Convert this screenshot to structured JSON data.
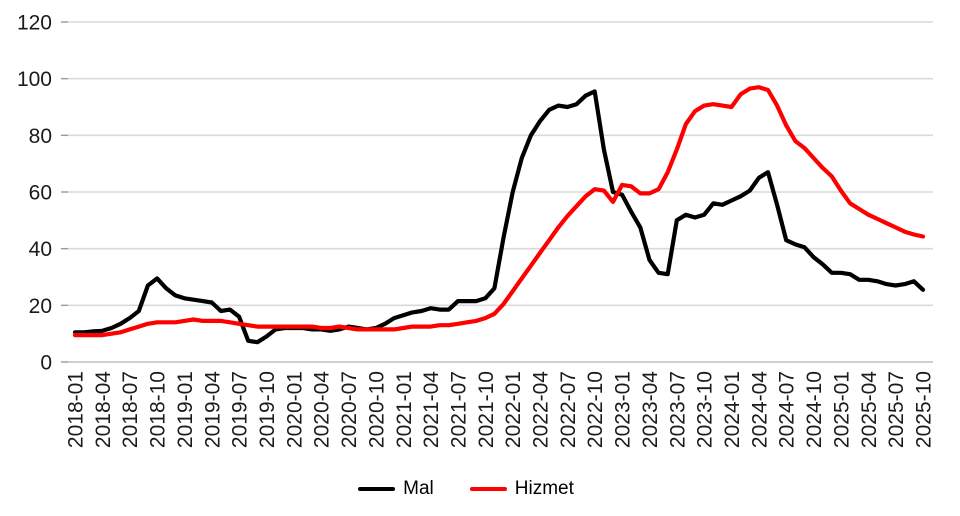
{
  "chart_data": {
    "type": "line",
    "title": "",
    "xlabel": "",
    "ylabel": "",
    "ylim": [
      0,
      120
    ],
    "yticks": [
      0,
      20,
      40,
      60,
      80,
      100,
      120
    ],
    "x_tick_every": 3,
    "grid": "horizontal-only",
    "legend_position": "bottom-center",
    "gridline_color": "#d9d9d9",
    "baseline_color": "#bfbfbf",
    "x": [
      "2018-01",
      "2018-02",
      "2018-03",
      "2018-04",
      "2018-05",
      "2018-06",
      "2018-07",
      "2018-08",
      "2018-09",
      "2018-10",
      "2018-11",
      "2018-12",
      "2019-01",
      "2019-02",
      "2019-03",
      "2019-04",
      "2019-05",
      "2019-06",
      "2019-07",
      "2019-08",
      "2019-09",
      "2019-10",
      "2019-11",
      "2019-12",
      "2020-01",
      "2020-02",
      "2020-03",
      "2020-04",
      "2020-05",
      "2020-06",
      "2020-07",
      "2020-08",
      "2020-09",
      "2020-10",
      "2020-11",
      "2020-12",
      "2021-01",
      "2021-02",
      "2021-03",
      "2021-04",
      "2021-05",
      "2021-06",
      "2021-07",
      "2021-08",
      "2021-09",
      "2021-10",
      "2021-11",
      "2021-12",
      "2022-01",
      "2022-02",
      "2022-03",
      "2022-04",
      "2022-05",
      "2022-06",
      "2022-07",
      "2022-08",
      "2022-09",
      "2022-10",
      "2022-11",
      "2022-12",
      "2023-01",
      "2023-02",
      "2023-03",
      "2023-04",
      "2023-05",
      "2023-06",
      "2023-07",
      "2023-08",
      "2023-09",
      "2023-10",
      "2023-11",
      "2023-12",
      "2024-01",
      "2024-02",
      "2024-03",
      "2024-04",
      "2024-05",
      "2024-06",
      "2024-07",
      "2024-08",
      "2024-09",
      "2024-10",
      "2024-11",
      "2024-12",
      "2025-01",
      "2025-02",
      "2025-03",
      "2025-04",
      "2025-05",
      "2025-06",
      "2025-07",
      "2025-08",
      "2025-09",
      "2025-10"
    ],
    "series": [
      {
        "name": "Mal",
        "color": "#000000",
        "values": [
          10.5,
          10.5,
          10.8,
          11,
          12,
          13.5,
          15.5,
          18,
          27,
          29.5,
          26,
          23.5,
          22.5,
          22,
          21.5,
          21,
          18,
          18.5,
          16,
          7.5,
          7,
          9,
          11.5,
          12,
          12,
          12,
          11.5,
          11.5,
          11,
          11.5,
          12.5,
          12,
          11.5,
          12,
          13.5,
          15.5,
          16.5,
          17.5,
          18,
          19,
          18.5,
          18.5,
          21.5,
          21.5,
          21.5,
          22.5,
          26,
          44,
          60,
          72,
          80,
          85,
          89,
          90.5,
          90,
          91,
          94,
          95.5,
          75,
          60,
          59,
          53,
          47.5,
          36,
          31.5,
          31,
          50,
          52,
          51,
          52,
          56,
          55.5,
          57,
          58.5,
          60.5,
          65,
          67,
          55.5,
          43,
          41.5,
          40.5,
          37,
          34.5,
          31.5,
          31.5,
          31,
          29,
          29,
          28.5,
          27.5,
          27,
          27.5,
          28.5,
          25.5
        ]
      },
      {
        "name": "Hizmet",
        "color": "#fe0000",
        "values": [
          9.5,
          9.5,
          9.5,
          9.5,
          10,
          10.5,
          11.5,
          12.5,
          13.5,
          14,
          14,
          14,
          14.5,
          15,
          14.5,
          14.5,
          14.5,
          14,
          13.5,
          13,
          12.5,
          12.5,
          12.5,
          12.5,
          12.5,
          12.5,
          12.5,
          12,
          12,
          12.5,
          12,
          11.5,
          11.5,
          11.5,
          11.5,
          11.5,
          12,
          12.5,
          12.5,
          12.5,
          13,
          13,
          13.5,
          14,
          14.5,
          15.5,
          17,
          20.5,
          25,
          29.5,
          34,
          38.5,
          43,
          47.5,
          51.5,
          55,
          58.5,
          61,
          60.5,
          56.5,
          62.5,
          62,
          59.5,
          59.5,
          61,
          67,
          75,
          84,
          88.5,
          90.5,
          91,
          90.5,
          90,
          94.5,
          96.5,
          97,
          96,
          90.5,
          83.5,
          78,
          75.5,
          72,
          68.5,
          65.5,
          60.5,
          56,
          54,
          52,
          50.5,
          49,
          47.5,
          46,
          45,
          44.3
        ]
      }
    ]
  }
}
